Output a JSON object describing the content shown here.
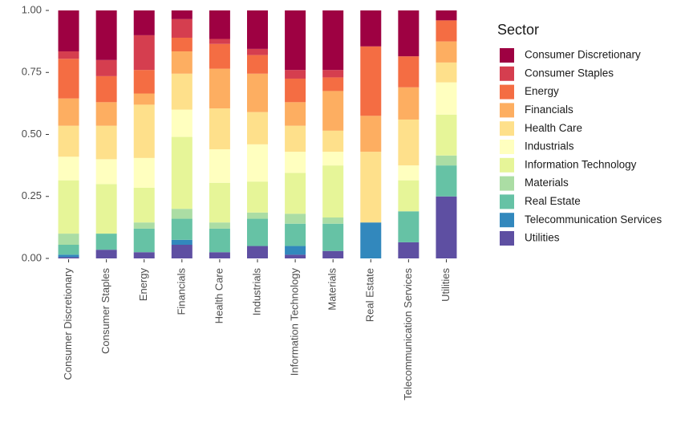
{
  "chart_data": {
    "type": "stacked_bar",
    "legend_title": "Sector",
    "legend_position": "right",
    "categories": [
      "Consumer Discretionary",
      "Consumer Staples",
      "Energy",
      "Financials",
      "Health Care",
      "Industrials",
      "Information Technology",
      "Materials",
      "Real Estate",
      "Telecommunication Services",
      "Utilities"
    ],
    "ylim": [
      0,
      1
    ],
    "yticks": [
      {
        "value": 0,
        "label": "0.00"
      },
      {
        "value": 0.25,
        "label": "0.25"
      },
      {
        "value": 0.5,
        "label": "0.50"
      },
      {
        "value": 0.75,
        "label": "0.75"
      },
      {
        "value": 1,
        "label": "1.00"
      }
    ],
    "series": [
      {
        "name": "Consumer Discretionary",
        "color": "#9E0142",
        "values": [
          0.165,
          0.2,
          0.1,
          0.035,
          0.115,
          0.155,
          0.24,
          0.24,
          0.145,
          0.185,
          0.04
        ]
      },
      {
        "name": "Consumer Staples",
        "color": "#D53E4F",
        "values": [
          0.03,
          0.065,
          0.14,
          0.075,
          0.02,
          0.025,
          0.035,
          0.03,
          0,
          0,
          0
        ]
      },
      {
        "name": "Energy",
        "color": "#F46D43",
        "values": [
          0.16,
          0.105,
          0.095,
          0.055,
          0.1,
          0.075,
          0.095,
          0.055,
          0.28,
          0.125,
          0.085
        ]
      },
      {
        "name": "Financials",
        "color": "#FDAE61",
        "values": [
          0.11,
          0.095,
          0.045,
          0.09,
          0.16,
          0.155,
          0.095,
          0.16,
          0.145,
          0.13,
          0.085
        ]
      },
      {
        "name": "Health Care",
        "color": "#FEE08B",
        "values": [
          0.125,
          0.135,
          0.215,
          0.145,
          0.165,
          0.13,
          0.105,
          0.085,
          0.285,
          0.185,
          0.08
        ]
      },
      {
        "name": "Industrials",
        "color": "#FFFFBF",
        "values": [
          0.095,
          0.1,
          0.12,
          0.11,
          0.135,
          0.15,
          0.085,
          0.055,
          0,
          0.06,
          0.13
        ]
      },
      {
        "name": "Information Technology",
        "color": "#E6F598",
        "values": [
          0.215,
          0.2,
          0.14,
          0.29,
          0.16,
          0.125,
          0.165,
          0.21,
          0,
          0.125,
          0.165
        ]
      },
      {
        "name": "Materials",
        "color": "#ABDDA4",
        "values": [
          0.045,
          0,
          0.025,
          0.04,
          0.025,
          0.025,
          0.04,
          0.025,
          0,
          0,
          0.04
        ]
      },
      {
        "name": "Real Estate",
        "color": "#66C2A5",
        "values": [
          0.04,
          0.065,
          0.095,
          0.085,
          0.095,
          0.11,
          0.09,
          0.11,
          0,
          0.125,
          0.125
        ]
      },
      {
        "name": "Telecommunication Services",
        "color": "#3288BD",
        "values": [
          0.01,
          0,
          0,
          0.02,
          0,
          0,
          0.035,
          0,
          0.145,
          0,
          0
        ]
      },
      {
        "name": "Utilities",
        "color": "#5E4FA2",
        "values": [
          0.005,
          0.035,
          0.025,
          0.055,
          0.025,
          0.05,
          0.015,
          0.03,
          0,
          0.065,
          0.25
        ]
      }
    ]
  }
}
